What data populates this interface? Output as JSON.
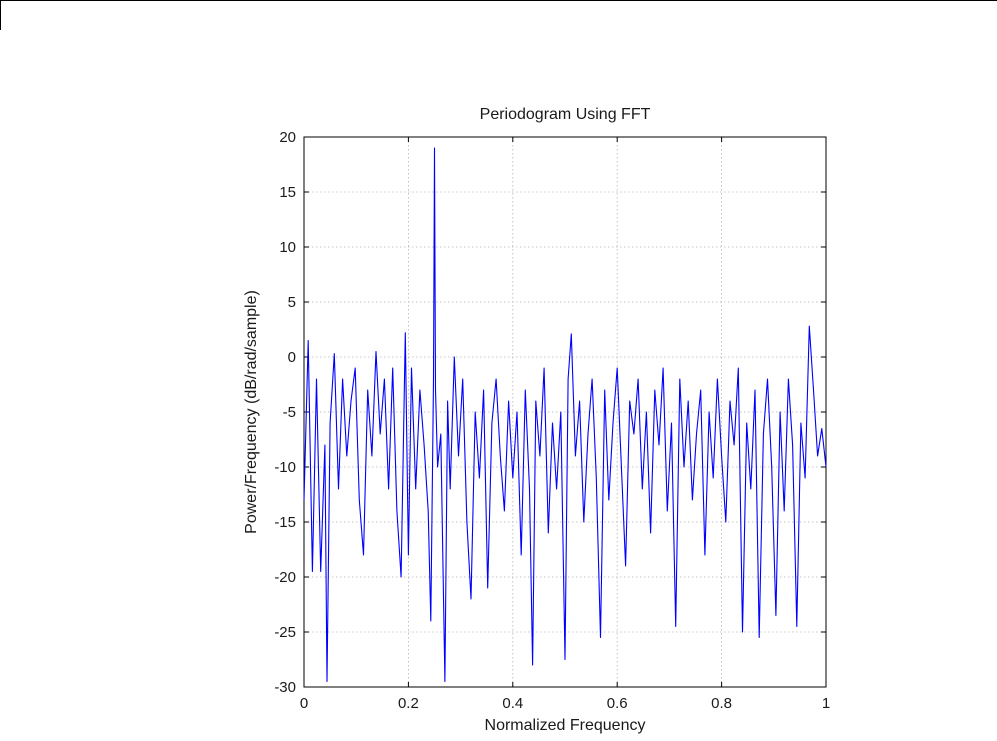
{
  "chart_data": {
    "type": "line",
    "title": "Periodogram Using FFT",
    "xlabel": "Normalized Frequency",
    "ylabel": "Power/Frequency (dB/rad/sample)",
    "xlim": [
      0,
      1
    ],
    "ylim": [
      -30,
      20
    ],
    "x_ticks": [
      0,
      0.2,
      0.4,
      0.6,
      0.8,
      1
    ],
    "x_tick_labels": [
      "0",
      "0.2",
      "0.4",
      "0.6",
      "0.8",
      "1"
    ],
    "y_ticks": [
      20,
      15,
      10,
      5,
      0,
      -5,
      -10,
      -15,
      -20,
      -25,
      -30
    ],
    "y_tick_labels": [
      "20",
      "15",
      "10",
      "5",
      "0",
      "-5",
      "-10",
      "-15",
      "-20",
      "-25",
      "-30"
    ],
    "grid": true,
    "line_color": "#0000ff",
    "series": [
      {
        "x": [
          0,
          0.008,
          0.016,
          0.024,
          0.032,
          0.04,
          0.044,
          0.05,
          0.058,
          0.066,
          0.074,
          0.082,
          0.09,
          0.098,
          0.106,
          0.114,
          0.122,
          0.13,
          0.138,
          0.146,
          0.154,
          0.162,
          0.17,
          0.178,
          0.186,
          0.194,
          0.2,
          0.206,
          0.214,
          0.222,
          0.23,
          0.238,
          0.243,
          0.248,
          0.25,
          0.252,
          0.256,
          0.262,
          0.27,
          0.275,
          0.28,
          0.288,
          0.296,
          0.304,
          0.312,
          0.32,
          0.328,
          0.336,
          0.344,
          0.352,
          0.36,
          0.368,
          0.376,
          0.384,
          0.392,
          0.4,
          0.408,
          0.416,
          0.424,
          0.432,
          0.438,
          0.444,
          0.452,
          0.46,
          0.468,
          0.476,
          0.484,
          0.492,
          0.5,
          0.506,
          0.512,
          0.52,
          0.528,
          0.536,
          0.544,
          0.552,
          0.56,
          0.568,
          0.576,
          0.584,
          0.592,
          0.6,
          0.608,
          0.616,
          0.624,
          0.632,
          0.64,
          0.648,
          0.656,
          0.664,
          0.672,
          0.68,
          0.688,
          0.696,
          0.704,
          0.712,
          0.72,
          0.728,
          0.736,
          0.744,
          0.752,
          0.76,
          0.768,
          0.776,
          0.784,
          0.792,
          0.8,
          0.808,
          0.816,
          0.824,
          0.832,
          0.84,
          0.848,
          0.856,
          0.864,
          0.872,
          0.88,
          0.888,
          0.896,
          0.904,
          0.912,
          0.92,
          0.928,
          0.936,
          0.944,
          0.952,
          0.96,
          0.968,
          0.976,
          0.984,
          0.992,
          1
        ],
        "values": [
          -13,
          1.5,
          -19.5,
          -2,
          -19.5,
          -8,
          -29.5,
          -6,
          0.3,
          -12,
          -2,
          -9,
          -4,
          -1,
          -13,
          -18,
          -3,
          -9,
          0.5,
          -7,
          -2,
          -12,
          -1,
          -14,
          -20,
          2.2,
          -18,
          -1,
          -12,
          -3,
          -8,
          -14,
          -24,
          -2,
          19,
          -3,
          -10,
          -7,
          -29.5,
          -4,
          -12,
          0,
          -9,
          -2,
          -15,
          -22,
          -5,
          -11,
          -3,
          -21,
          -6,
          -2,
          -9,
          -14,
          -4,
          -11,
          -5,
          -18,
          -3,
          -12,
          -28,
          -4,
          -9,
          -1,
          -16,
          -6,
          -12,
          -5,
          -27.5,
          -2,
          2.1,
          -9,
          -4,
          -15,
          -7,
          -2,
          -11,
          -25.5,
          -3,
          -13,
          -6,
          -1,
          -10,
          -19,
          -4,
          -7,
          -2,
          -12,
          -5,
          -16,
          -3,
          -8,
          -1,
          -14,
          -6,
          -24.5,
          -2,
          -10,
          -4,
          -13,
          -7,
          -3,
          -18,
          -5,
          -11,
          -2,
          -9,
          -15,
          -4,
          -8,
          -1,
          -25,
          -6,
          -12,
          -3,
          -25.5,
          -7,
          -2,
          -10,
          -23.5,
          -5,
          -14,
          -2,
          -8,
          -24.5,
          -6,
          -11,
          2.8,
          -3,
          -9,
          -6.5,
          -10
        ]
      }
    ]
  }
}
